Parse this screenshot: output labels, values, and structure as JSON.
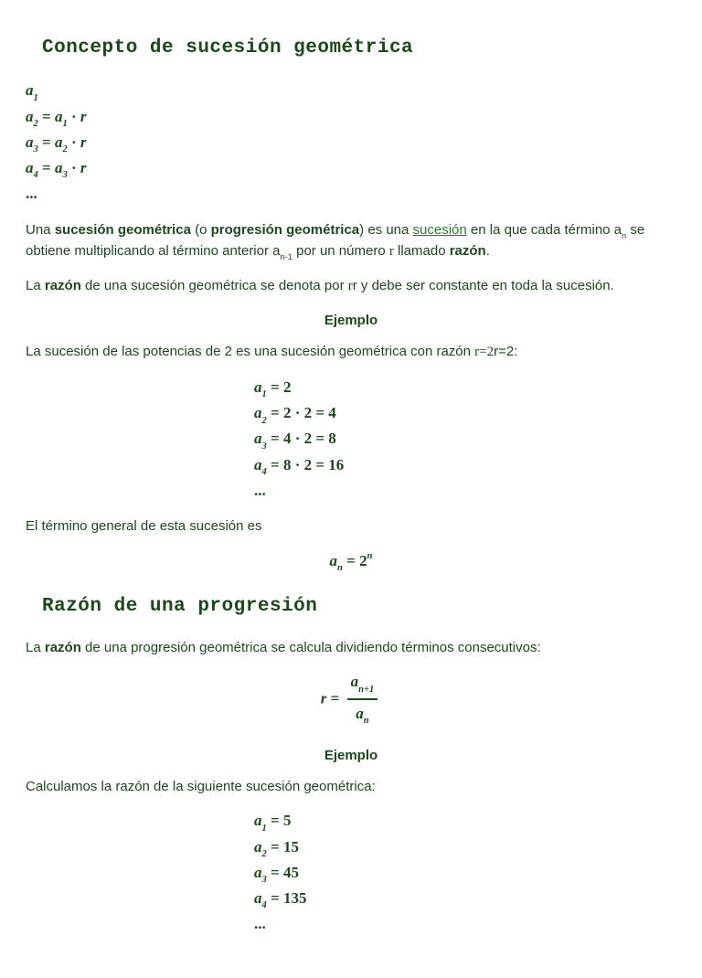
{
  "colors": {
    "text": "#1a4a1a",
    "link": "#2a7a2a",
    "background": "#ffffff"
  },
  "typography": {
    "body_font": "Verdana",
    "heading_font": "Courier New",
    "math_font": "Cambria Math",
    "body_size_pt": 11,
    "heading_size_pt": 16,
    "math_size_pt": 13
  },
  "section1": {
    "title": "Concepto de sucesión geométrica",
    "seq_def": [
      "a₁",
      "a₂ = a₁ · r",
      "a₃ = a₂ · r",
      "a₄ = a₃ · r",
      "..."
    ],
    "para1_pre": "Una ",
    "para1_b1": "sucesión geométrica",
    "para1_mid1": " (o ",
    "para1_b2": "progresión geométrica",
    "para1_mid2": ") es una ",
    "para1_link": "sucesión",
    "para1_mid3": " en la que cada término a",
    "para1_sub1": "n",
    "para1_mid4": " se obtiene multiplicando al término anterior a",
    "para1_sub2": "n-1",
    "para1_mid5": " por un número ",
    "para1_r": "r",
    "para1_mid6": " llamado ",
    "para1_b3": "razón",
    "para1_end": ".",
    "para2_pre": "La ",
    "para2_b1": "razón",
    "para2_mid1": " de una sucesión geométrica se denota por ",
    "para2_r1": "r",
    "para2_r2": "r",
    "para2_end": " y debe ser constante en toda la sucesión.",
    "ejemplo_label": "Ejemplo",
    "ej1_intro_pre": "La sucesión de las potencias de 2 es una sucesión geométrica con razón ",
    "ej1_r1": "r=2",
    "ej1_r2": "r=2:",
    "ej1_seq": [
      "a₁ = 2",
      "a₂ = 2 · 2 = 4",
      "a₃ = 4 · 2 = 8",
      "a₄ = 8 · 2 = 16",
      "..."
    ],
    "ej1_general_intro": "El término general de esta sucesión es",
    "ej1_general_eq_lhs": "a",
    "ej1_general_eq_sub": "n",
    "ej1_general_eq_mid": " = 2",
    "ej1_general_eq_sup": "n"
  },
  "section2": {
    "title": "Razón de una progresión",
    "para1_pre": "La ",
    "para1_b1": "razón",
    "para1_end": " de una progresión geométrica se calcula dividiendo términos consecutivos:",
    "eq_lhs": "r = ",
    "eq_num_a": "a",
    "eq_num_sub": "n+1",
    "eq_den_a": "a",
    "eq_den_sub": "n",
    "ejemplo_label": "Ejemplo",
    "ej_intro": "Calculamos la razón de la siguiente sucesión geométrica:",
    "ej_seq": [
      "a₁ = 5",
      "a₂ = 15",
      "a₃ = 45",
      "a₄ = 135",
      "..."
    ]
  }
}
